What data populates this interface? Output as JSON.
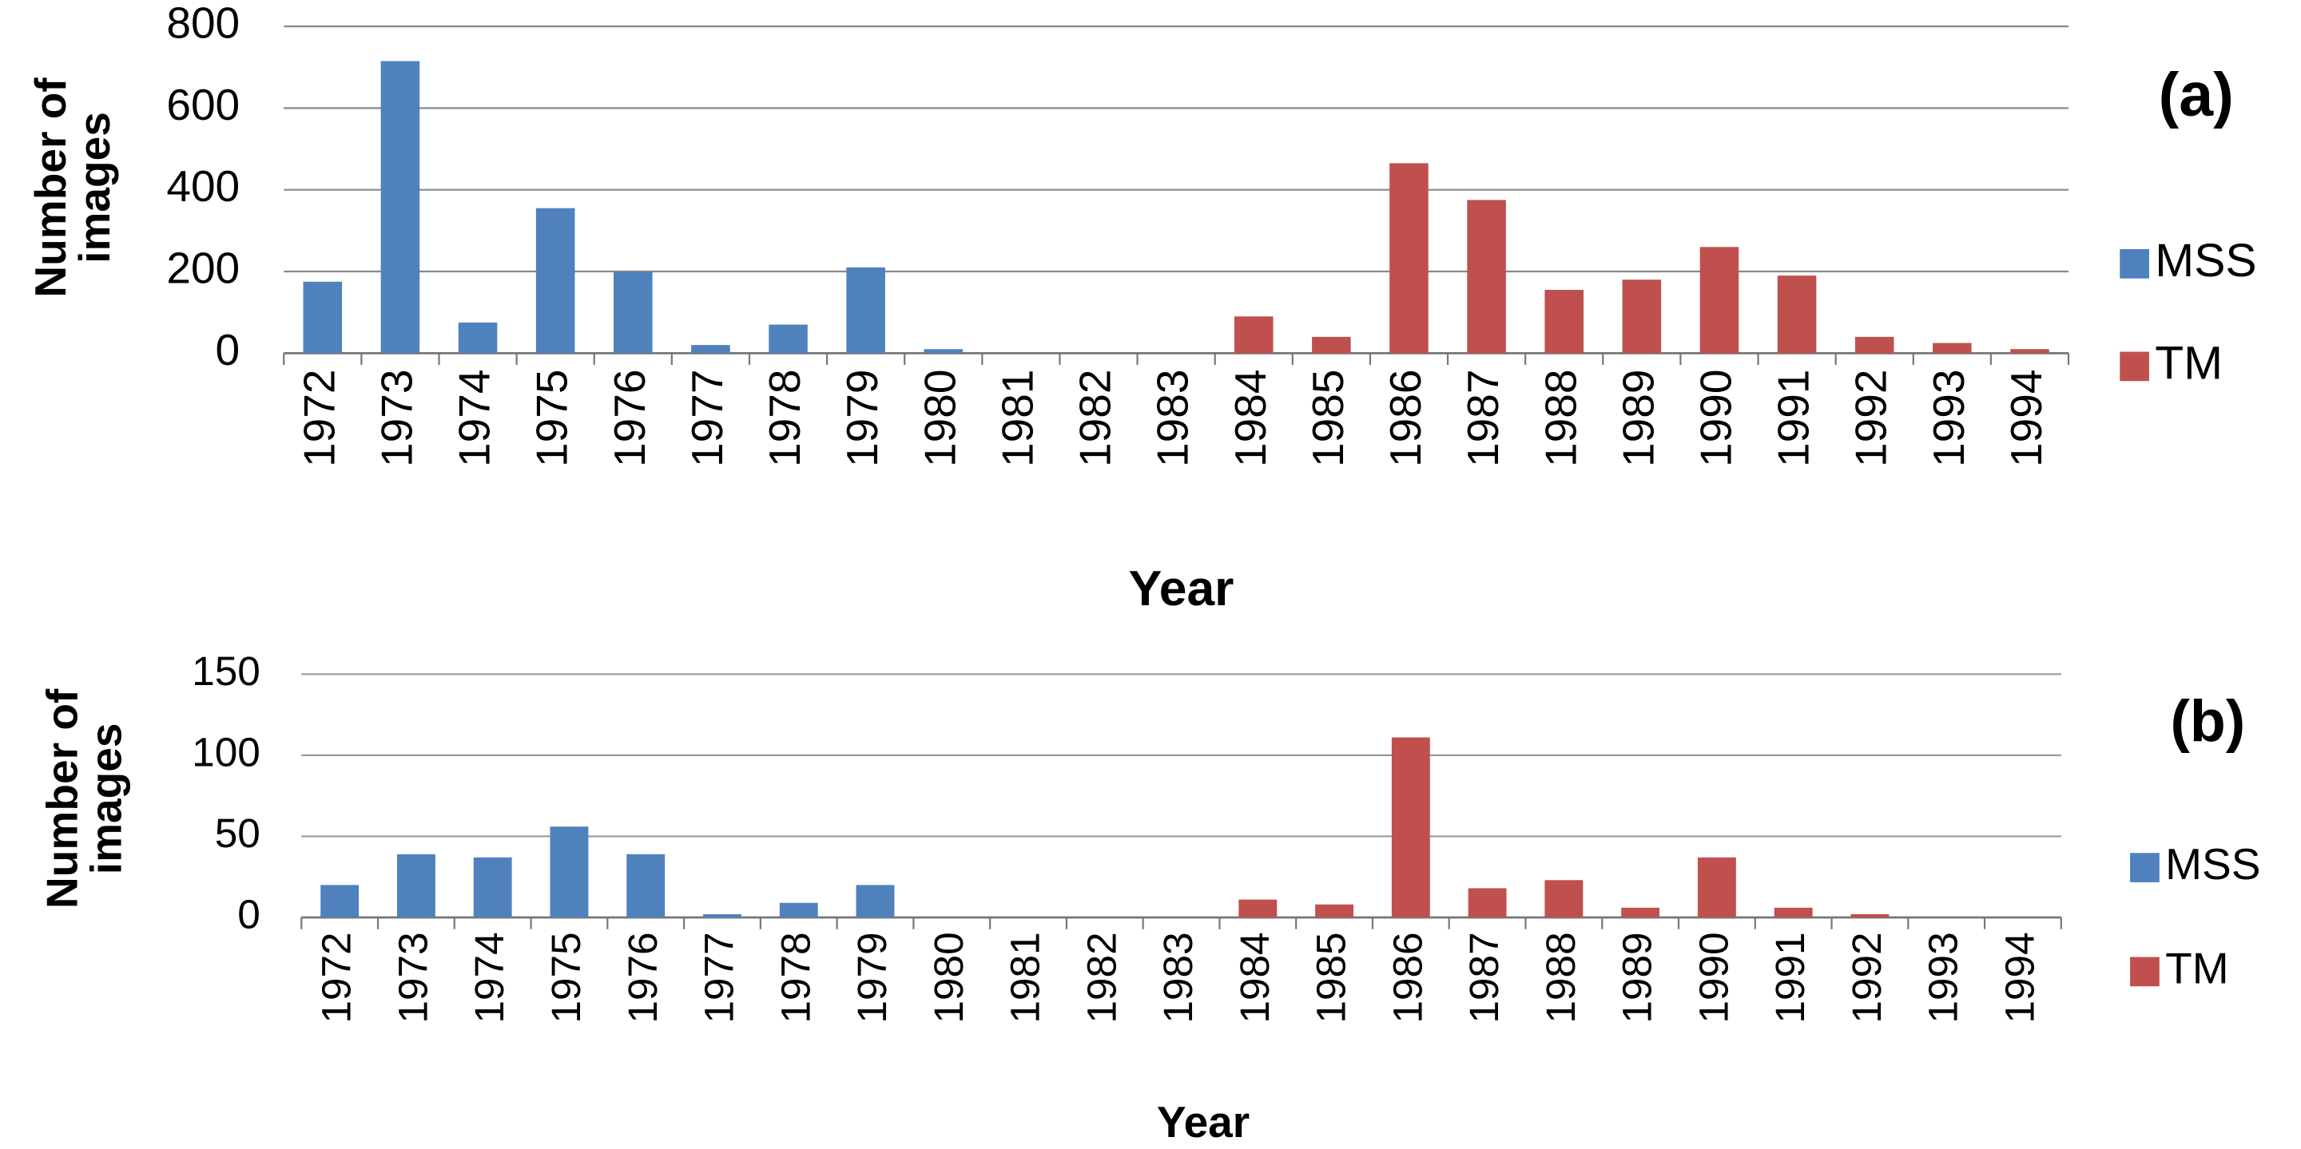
{
  "chart_data": [
    {
      "type": "bar",
      "panel_label": "(a)",
      "y_label": "Number of images",
      "x_label": "Year",
      "categories": [
        "1972",
        "1973",
        "1974",
        "1975",
        "1976",
        "1977",
        "1978",
        "1979",
        "1980",
        "1981",
        "1982",
        "1983",
        "1984",
        "1985",
        "1986",
        "1987",
        "1988",
        "1989",
        "1990",
        "1991",
        "1992",
        "1993",
        "1994"
      ],
      "series": [
        {
          "name": "MSS",
          "color": "#4f81bd",
          "values": [
            175,
            715,
            75,
            355,
            200,
            20,
            70,
            210,
            10,
            null,
            null,
            null,
            null,
            null,
            null,
            null,
            null,
            null,
            null,
            null,
            null,
            null,
            null
          ]
        },
        {
          "name": "TM",
          "color": "#c0504d",
          "values": [
            null,
            null,
            null,
            null,
            null,
            null,
            null,
            null,
            null,
            null,
            null,
            null,
            90,
            40,
            465,
            375,
            155,
            180,
            260,
            190,
            40,
            25,
            10
          ]
        }
      ],
      "ylim": [
        0,
        800
      ],
      "yticks": [
        0,
        200,
        400,
        600,
        800
      ],
      "grid": true,
      "legend": "right"
    },
    {
      "type": "bar",
      "panel_label": "(b)",
      "y_label": "Number of images",
      "x_label": "Year",
      "categories": [
        "1972",
        "1973",
        "1974",
        "1975",
        "1976",
        "1977",
        "1978",
        "1979",
        "1980",
        "1981",
        "1982",
        "1983",
        "1984",
        "1985",
        "1986",
        "1987",
        "1988",
        "1989",
        "1990",
        "1991",
        "1992",
        "1993",
        "1994"
      ],
      "series": [
        {
          "name": "MSS",
          "color": "#4f81bd",
          "values": [
            20,
            39,
            37,
            56,
            39,
            2,
            9,
            20,
            null,
            null,
            null,
            null,
            null,
            null,
            null,
            null,
            null,
            null,
            null,
            null,
            null,
            null,
            null
          ]
        },
        {
          "name": "TM",
          "color": "#c0504d",
          "values": [
            null,
            null,
            null,
            null,
            null,
            null,
            null,
            null,
            null,
            null,
            null,
            null,
            11,
            8,
            111,
            18,
            23,
            6,
            37,
            6,
            2,
            null,
            null
          ]
        }
      ],
      "ylim": [
        0,
        150
      ],
      "yticks": [
        0,
        50,
        100,
        150
      ],
      "grid": true,
      "legend": "right"
    }
  ]
}
